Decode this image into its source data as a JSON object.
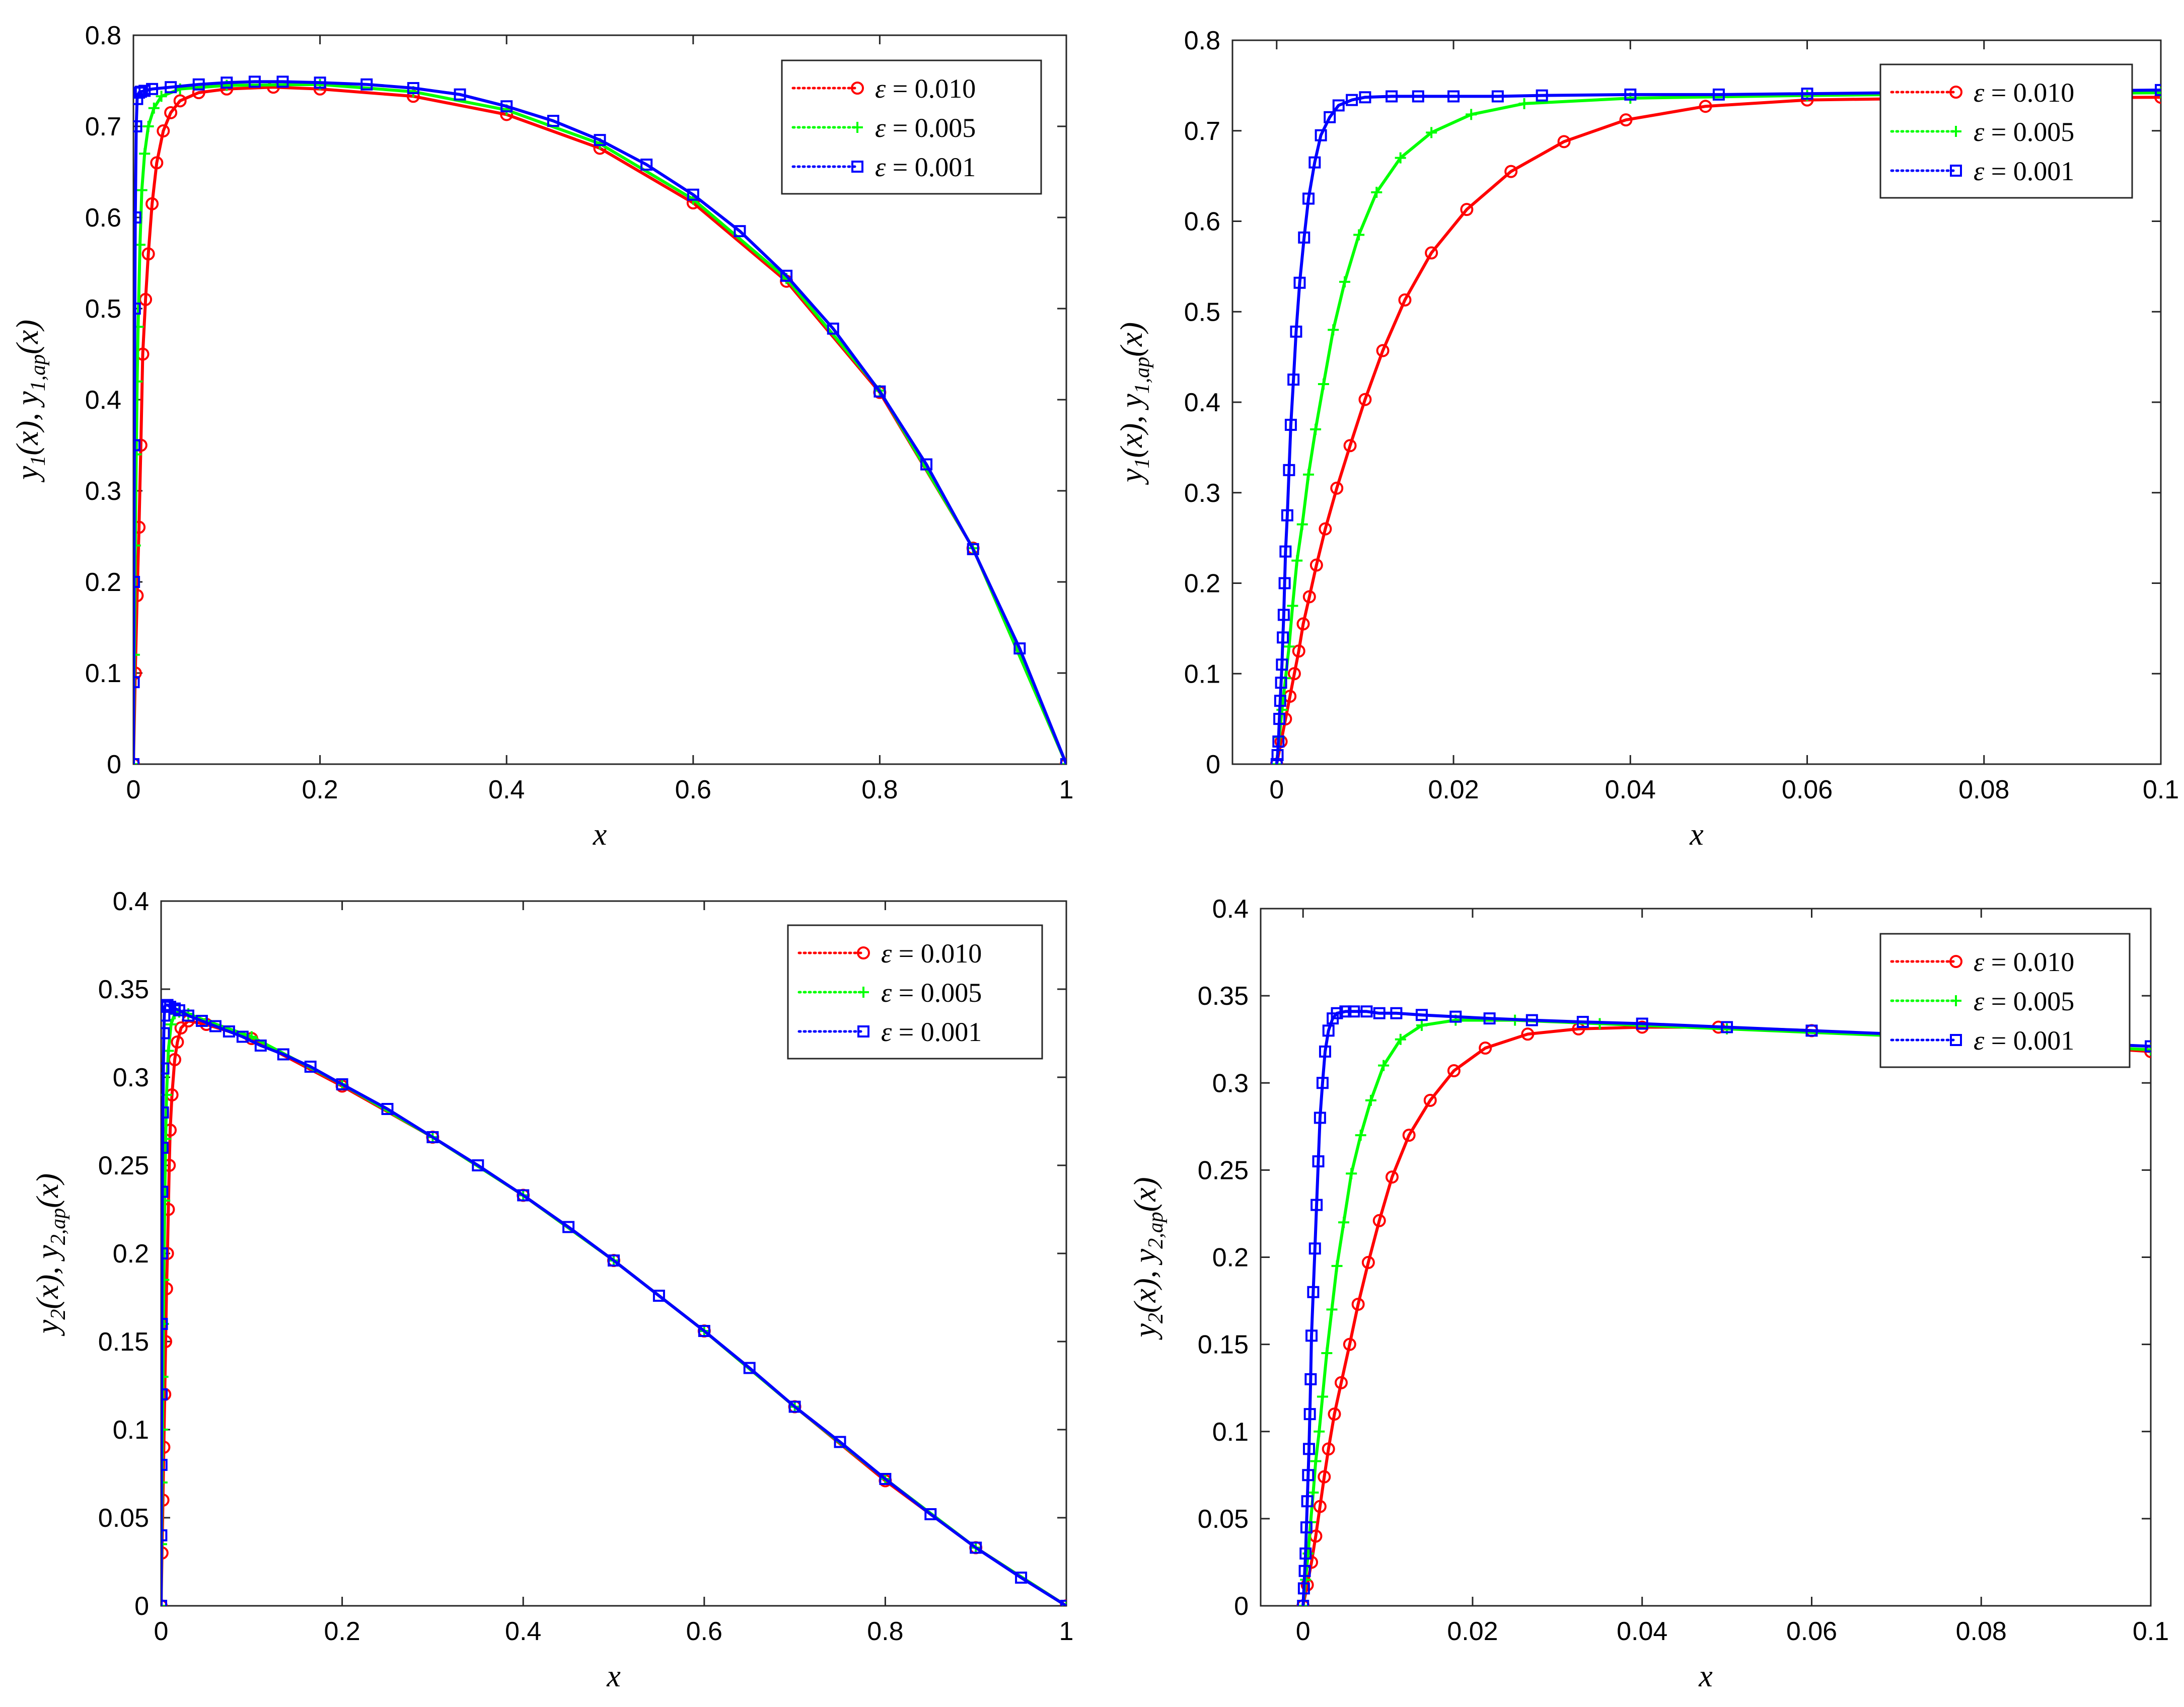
{
  "colors": {
    "red": "#ff0000",
    "green": "#00ff00",
    "blue": "#0000ff"
  },
  "legend_labels": [
    {
      "eps": "ε",
      "text": "= 0.010"
    },
    {
      "eps": "ε",
      "text": "= 0.005"
    },
    {
      "eps": "ε",
      "text": "= 0.001"
    }
  ],
  "chart_data": [
    {
      "type": "line",
      "title": "",
      "xlabel": "x",
      "ylabel": "y1(x), y1,ap(x)",
      "ylabel_parts": [
        "y",
        "1",
        "(x), y",
        "1,ap",
        "(x)"
      ],
      "xlim": [
        0,
        1
      ],
      "ylim": [
        0,
        0.8
      ],
      "xticks": [
        "0",
        "0.2",
        "0.4",
        "0.6",
        "0.8",
        "1"
      ],
      "yticks": [
        "0",
        "0.1",
        "0.2",
        "0.3",
        "0.4",
        "0.5",
        "0.6",
        "0.7",
        "0.8"
      ],
      "xtick_values": [
        0,
        0.2,
        0.4,
        0.6,
        0.8,
        1
      ],
      "ytick_values": [
        0,
        0.1,
        0.2,
        0.3,
        0.4,
        0.5,
        0.6,
        0.7,
        0.8
      ],
      "legend_position": "top-right",
      "series": [
        {
          "name": "ε = 0.010",
          "color": "red",
          "marker": "circle",
          "x": [
            0,
            0.002,
            0.004,
            0.006,
            0.008,
            0.01,
            0.013,
            0.016,
            0.02,
            0.025,
            0.032,
            0.04,
            0.05,
            0.07,
            0.1,
            0.15,
            0.2,
            0.3,
            0.4,
            0.5,
            0.6,
            0.7,
            0.8,
            0.9,
            1.0
          ],
          "y": [
            0,
            0.1,
            0.185,
            0.26,
            0.35,
            0.45,
            0.51,
            0.56,
            0.615,
            0.66,
            0.695,
            0.715,
            0.728,
            0.737,
            0.741,
            0.743,
            0.741,
            0.733,
            0.713,
            0.676,
            0.616,
            0.53,
            0.408,
            0.237,
            0
          ]
        },
        {
          "name": "ε = 0.005",
          "color": "green",
          "marker": "plus",
          "x": [
            0,
            0.001,
            0.002,
            0.003,
            0.004,
            0.005,
            0.007,
            0.009,
            0.012,
            0.016,
            0.022,
            0.03,
            0.05,
            0.1,
            0.2,
            0.3,
            0.4,
            0.5,
            0.6,
            0.7,
            0.8,
            0.9,
            1.0
          ],
          "y": [
            0,
            0.12,
            0.24,
            0.34,
            0.42,
            0.48,
            0.57,
            0.63,
            0.67,
            0.7,
            0.72,
            0.733,
            0.741,
            0.745,
            0.746,
            0.738,
            0.718,
            0.681,
            0.62,
            0.533,
            0.41,
            0.237,
            0
          ]
        },
        {
          "name": "ε = 0.001",
          "color": "blue",
          "marker": "square",
          "x": [
            0,
            0.0003,
            0.0006,
            0.001,
            0.0015,
            0.002,
            0.003,
            0.004,
            0.006,
            0.008,
            0.012,
            0.02,
            0.04,
            0.07,
            0.1,
            0.13,
            0.16,
            0.2,
            0.25,
            0.3,
            0.35,
            0.4,
            0.45,
            0.5,
            0.55,
            0.6,
            0.65,
            0.7,
            0.75,
            0.8,
            0.85,
            0.9,
            0.95,
            1.0
          ],
          "y": [
            0,
            0.09,
            0.2,
            0.35,
            0.5,
            0.6,
            0.7,
            0.73,
            0.737,
            0.738,
            0.739,
            0.741,
            0.743,
            0.746,
            0.748,
            0.749,
            0.749,
            0.748,
            0.746,
            0.742,
            0.735,
            0.722,
            0.706,
            0.685,
            0.658,
            0.625,
            0.585,
            0.536,
            0.478,
            0.409,
            0.329,
            0.236,
            0.127,
            0
          ]
        }
      ]
    },
    {
      "type": "line",
      "title": "",
      "xlabel": "x",
      "ylabel": "y1(x), y1,ap(x)",
      "ylabel_parts": [
        "y",
        "1",
        "(x), y",
        "1,ap",
        "(x)"
      ],
      "xlim": [
        -0.005,
        0.1
      ],
      "ylim": [
        0,
        0.8
      ],
      "xticks": [
        "0",
        "0.02",
        "0.04",
        "0.06",
        "0.08",
        "0.1"
      ],
      "yticks": [
        "0",
        "0.1",
        "0.2",
        "0.3",
        "0.4",
        "0.5",
        "0.6",
        "0.7",
        "0.8"
      ],
      "xtick_values": [
        0,
        0.02,
        0.04,
        0.06,
        0.08,
        0.1
      ],
      "ytick_values": [
        0,
        0.1,
        0.2,
        0.3,
        0.4,
        0.5,
        0.6,
        0.7,
        0.8
      ],
      "legend_position": "top-right",
      "series": [
        {
          "name": "ε = 0.010",
          "color": "red",
          "marker": "circle",
          "x": [
            0,
            0.0005,
            0.001,
            0.0015,
            0.002,
            0.0025,
            0.003,
            0.0037,
            0.0045,
            0.0055,
            0.0068,
            0.0083,
            0.01,
            0.012,
            0.0145,
            0.0175,
            0.0215,
            0.0265,
            0.0325,
            0.0395,
            0.0485,
            0.06,
            0.075,
            0.1
          ],
          "y": [
            0,
            0.025,
            0.05,
            0.075,
            0.1,
            0.125,
            0.155,
            0.185,
            0.22,
            0.26,
            0.305,
            0.352,
            0.403,
            0.457,
            0.513,
            0.565,
            0.613,
            0.655,
            0.688,
            0.712,
            0.727,
            0.734,
            0.736,
            0.737
          ]
        },
        {
          "name": "ε = 0.005",
          "color": "green",
          "marker": "plus",
          "x": [
            0,
            0.0003,
            0.0006,
            0.001,
            0.0014,
            0.0018,
            0.0023,
            0.0029,
            0.0036,
            0.0044,
            0.0053,
            0.0064,
            0.0077,
            0.0093,
            0.0113,
            0.014,
            0.0175,
            0.022,
            0.028,
            0.04,
            0.06,
            0.08,
            0.1
          ],
          "y": [
            0,
            0.03,
            0.06,
            0.095,
            0.13,
            0.175,
            0.225,
            0.265,
            0.32,
            0.37,
            0.42,
            0.48,
            0.533,
            0.585,
            0.632,
            0.67,
            0.698,
            0.718,
            0.73,
            0.736,
            0.739,
            0.741,
            0.742
          ]
        },
        {
          "name": "ε = 0.001",
          "color": "blue",
          "marker": "square",
          "x": [
            0,
            0.0001,
            0.0002,
            0.0003,
            0.0004,
            0.0005,
            0.0006,
            0.0007,
            0.0008,
            0.0009,
            0.001,
            0.0012,
            0.0014,
            0.0016,
            0.0019,
            0.0022,
            0.0026,
            0.0031,
            0.0036,
            0.0043,
            0.005,
            0.006,
            0.007,
            0.0085,
            0.01,
            0.013,
            0.016,
            0.02,
            0.025,
            0.03,
            0.04,
            0.05,
            0.06,
            0.07,
            0.08,
            0.09,
            0.1
          ],
          "y": [
            0,
            0.01,
            0.025,
            0.05,
            0.07,
            0.09,
            0.11,
            0.14,
            0.165,
            0.2,
            0.235,
            0.275,
            0.325,
            0.375,
            0.425,
            0.478,
            0.532,
            0.582,
            0.625,
            0.665,
            0.695,
            0.715,
            0.728,
            0.734,
            0.737,
            0.738,
            0.738,
            0.738,
            0.738,
            0.739,
            0.74,
            0.74,
            0.741,
            0.742,
            0.743,
            0.744,
            0.745
          ]
        }
      ]
    },
    {
      "type": "line",
      "title": "",
      "xlabel": "x",
      "ylabel": "y2(x), y2,ap(x)",
      "ylabel_parts": [
        "y",
        "2",
        "(x), y",
        "2,ap",
        "(x)"
      ],
      "xlim": [
        0,
        1
      ],
      "ylim": [
        0,
        0.4
      ],
      "xticks": [
        "0",
        "0.2",
        "0.4",
        "0.6",
        "0.8",
        "1"
      ],
      "yticks": [
        "0",
        "0.05",
        "0.1",
        "0.15",
        "0.2",
        "0.25",
        "0.3",
        "0.35",
        "0.4"
      ],
      "xtick_values": [
        0,
        0.2,
        0.4,
        0.6,
        0.8,
        1
      ],
      "ytick_values": [
        0,
        0.05,
        0.1,
        0.15,
        0.2,
        0.25,
        0.3,
        0.35,
        0.4
      ],
      "legend_position": "top-right",
      "series": [
        {
          "name": "ε = 0.010",
          "color": "red",
          "marker": "circle",
          "x": [
            0,
            0.001,
            0.002,
            0.003,
            0.004,
            0.005,
            0.006,
            0.007,
            0.008,
            0.009,
            0.01,
            0.012,
            0.015,
            0.018,
            0.022,
            0.03,
            0.05,
            0.1,
            0.2,
            0.3,
            0.4,
            0.5,
            0.6,
            0.7,
            0.8,
            0.9,
            1.0
          ],
          "y": [
            0,
            0.03,
            0.06,
            0.09,
            0.12,
            0.15,
            0.18,
            0.2,
            0.225,
            0.25,
            0.27,
            0.29,
            0.31,
            0.32,
            0.328,
            0.332,
            0.33,
            0.322,
            0.295,
            0.266,
            0.233,
            0.196,
            0.156,
            0.113,
            0.071,
            0.033,
            0
          ]
        },
        {
          "name": "ε = 0.005",
          "color": "green",
          "marker": "plus",
          "x": [
            0,
            0.0005,
            0.001,
            0.0015,
            0.002,
            0.0025,
            0.003,
            0.004,
            0.005,
            0.006,
            0.008,
            0.011,
            0.015,
            0.02,
            0.03,
            0.05,
            0.1,
            0.2,
            0.3,
            0.4,
            0.5,
            0.6,
            0.7,
            0.8,
            0.9,
            1.0
          ],
          "y": [
            0,
            0.035,
            0.07,
            0.1,
            0.13,
            0.16,
            0.185,
            0.23,
            0.265,
            0.29,
            0.315,
            0.33,
            0.336,
            0.337,
            0.336,
            0.332,
            0.323,
            0.296,
            0.266,
            0.233,
            0.196,
            0.156,
            0.113,
            0.072,
            0.033,
            0
          ]
        },
        {
          "name": "ε = 0.001",
          "color": "blue",
          "marker": "square",
          "x": [
            0,
            0.0002,
            0.0004,
            0.0006,
            0.0008,
            0.001,
            0.0013,
            0.0016,
            0.002,
            0.0025,
            0.003,
            0.0035,
            0.004,
            0.005,
            0.007,
            0.01,
            0.015,
            0.02,
            0.03,
            0.045,
            0.06,
            0.075,
            0.09,
            0.11,
            0.135,
            0.165,
            0.2,
            0.25,
            0.3,
            0.35,
            0.4,
            0.45,
            0.5,
            0.55,
            0.6,
            0.65,
            0.7,
            0.75,
            0.8,
            0.85,
            0.9,
            0.95,
            1.0
          ],
          "y": [
            0,
            0.04,
            0.08,
            0.12,
            0.16,
            0.2,
            0.235,
            0.26,
            0.28,
            0.305,
            0.325,
            0.335,
            0.34,
            0.341,
            0.341,
            0.34,
            0.339,
            0.338,
            0.335,
            0.332,
            0.329,
            0.326,
            0.323,
            0.318,
            0.313,
            0.306,
            0.296,
            0.282,
            0.266,
            0.25,
            0.233,
            0.215,
            0.196,
            0.176,
            0.156,
            0.135,
            0.113,
            0.093,
            0.072,
            0.052,
            0.033,
            0.016,
            0
          ]
        }
      ]
    },
    {
      "type": "line",
      "title": "",
      "xlabel": "x",
      "ylabel": "y2(x), y2,ap(x)",
      "ylabel_parts": [
        "y",
        "2",
        "(x), y",
        "2,ap",
        "(x)"
      ],
      "xlim": [
        -0.005,
        0.1
      ],
      "ylim": [
        0,
        0.4
      ],
      "xticks": [
        "0",
        "0.02",
        "0.04",
        "0.06",
        "0.08",
        "0.1"
      ],
      "yticks": [
        "0",
        "0.05",
        "0.1",
        "0.15",
        "0.2",
        "0.25",
        "0.3",
        "0.35",
        "0.4"
      ],
      "xtick_values": [
        0,
        0.02,
        0.04,
        0.06,
        0.08,
        0.1
      ],
      "ytick_values": [
        0,
        0.05,
        0.1,
        0.15,
        0.2,
        0.25,
        0.3,
        0.35,
        0.4
      ],
      "legend_position": "top-right",
      "series": [
        {
          "name": "ε = 0.010",
          "color": "red",
          "marker": "circle",
          "x": [
            0,
            0.0005,
            0.001,
            0.0015,
            0.002,
            0.0025,
            0.003,
            0.0037,
            0.0045,
            0.0055,
            0.0065,
            0.0077,
            0.009,
            0.0105,
            0.0125,
            0.015,
            0.0178,
            0.0215,
            0.0265,
            0.0325,
            0.04,
            0.049,
            0.06,
            0.075,
            0.1
          ],
          "y": [
            0,
            0.012,
            0.025,
            0.04,
            0.057,
            0.074,
            0.09,
            0.11,
            0.128,
            0.15,
            0.173,
            0.197,
            0.221,
            0.246,
            0.27,
            0.29,
            0.307,
            0.32,
            0.328,
            0.331,
            0.332,
            0.332,
            0.33,
            0.326,
            0.318
          ]
        },
        {
          "name": "ε = 0.005",
          "color": "green",
          "marker": "plus",
          "x": [
            0,
            0.0003,
            0.0006,
            0.0009,
            0.0012,
            0.0015,
            0.0019,
            0.0023,
            0.0028,
            0.0034,
            0.004,
            0.0048,
            0.0057,
            0.0068,
            0.008,
            0.0095,
            0.0115,
            0.014,
            0.018,
            0.025,
            0.035,
            0.05,
            0.07,
            0.1
          ],
          "y": [
            0,
            0.015,
            0.03,
            0.048,
            0.065,
            0.083,
            0.1,
            0.12,
            0.145,
            0.17,
            0.195,
            0.22,
            0.248,
            0.27,
            0.29,
            0.31,
            0.325,
            0.333,
            0.336,
            0.336,
            0.334,
            0.331,
            0.327,
            0.319
          ]
        },
        {
          "name": "ε = 0.001",
          "color": "blue",
          "marker": "square",
          "x": [
            0,
            0.0001,
            0.0002,
            0.0003,
            0.0004,
            0.0005,
            0.0006,
            0.0007,
            0.0008,
            0.0009,
            0.001,
            0.0012,
            0.0014,
            0.0016,
            0.0018,
            0.002,
            0.0023,
            0.0026,
            0.003,
            0.0035,
            0.004,
            0.005,
            0.006,
            0.0075,
            0.009,
            0.011,
            0.014,
            0.018,
            0.022,
            0.027,
            0.033,
            0.04,
            0.05,
            0.06,
            0.07,
            0.08,
            0.09,
            0.1
          ],
          "y": [
            0,
            0.01,
            0.02,
            0.03,
            0.045,
            0.06,
            0.075,
            0.09,
            0.11,
            0.13,
            0.155,
            0.18,
            0.205,
            0.23,
            0.255,
            0.28,
            0.3,
            0.318,
            0.33,
            0.337,
            0.34,
            0.341,
            0.341,
            0.341,
            0.34,
            0.34,
            0.339,
            0.338,
            0.337,
            0.336,
            0.335,
            0.334,
            0.332,
            0.33,
            0.328,
            0.325,
            0.323,
            0.321
          ]
        }
      ]
    }
  ]
}
